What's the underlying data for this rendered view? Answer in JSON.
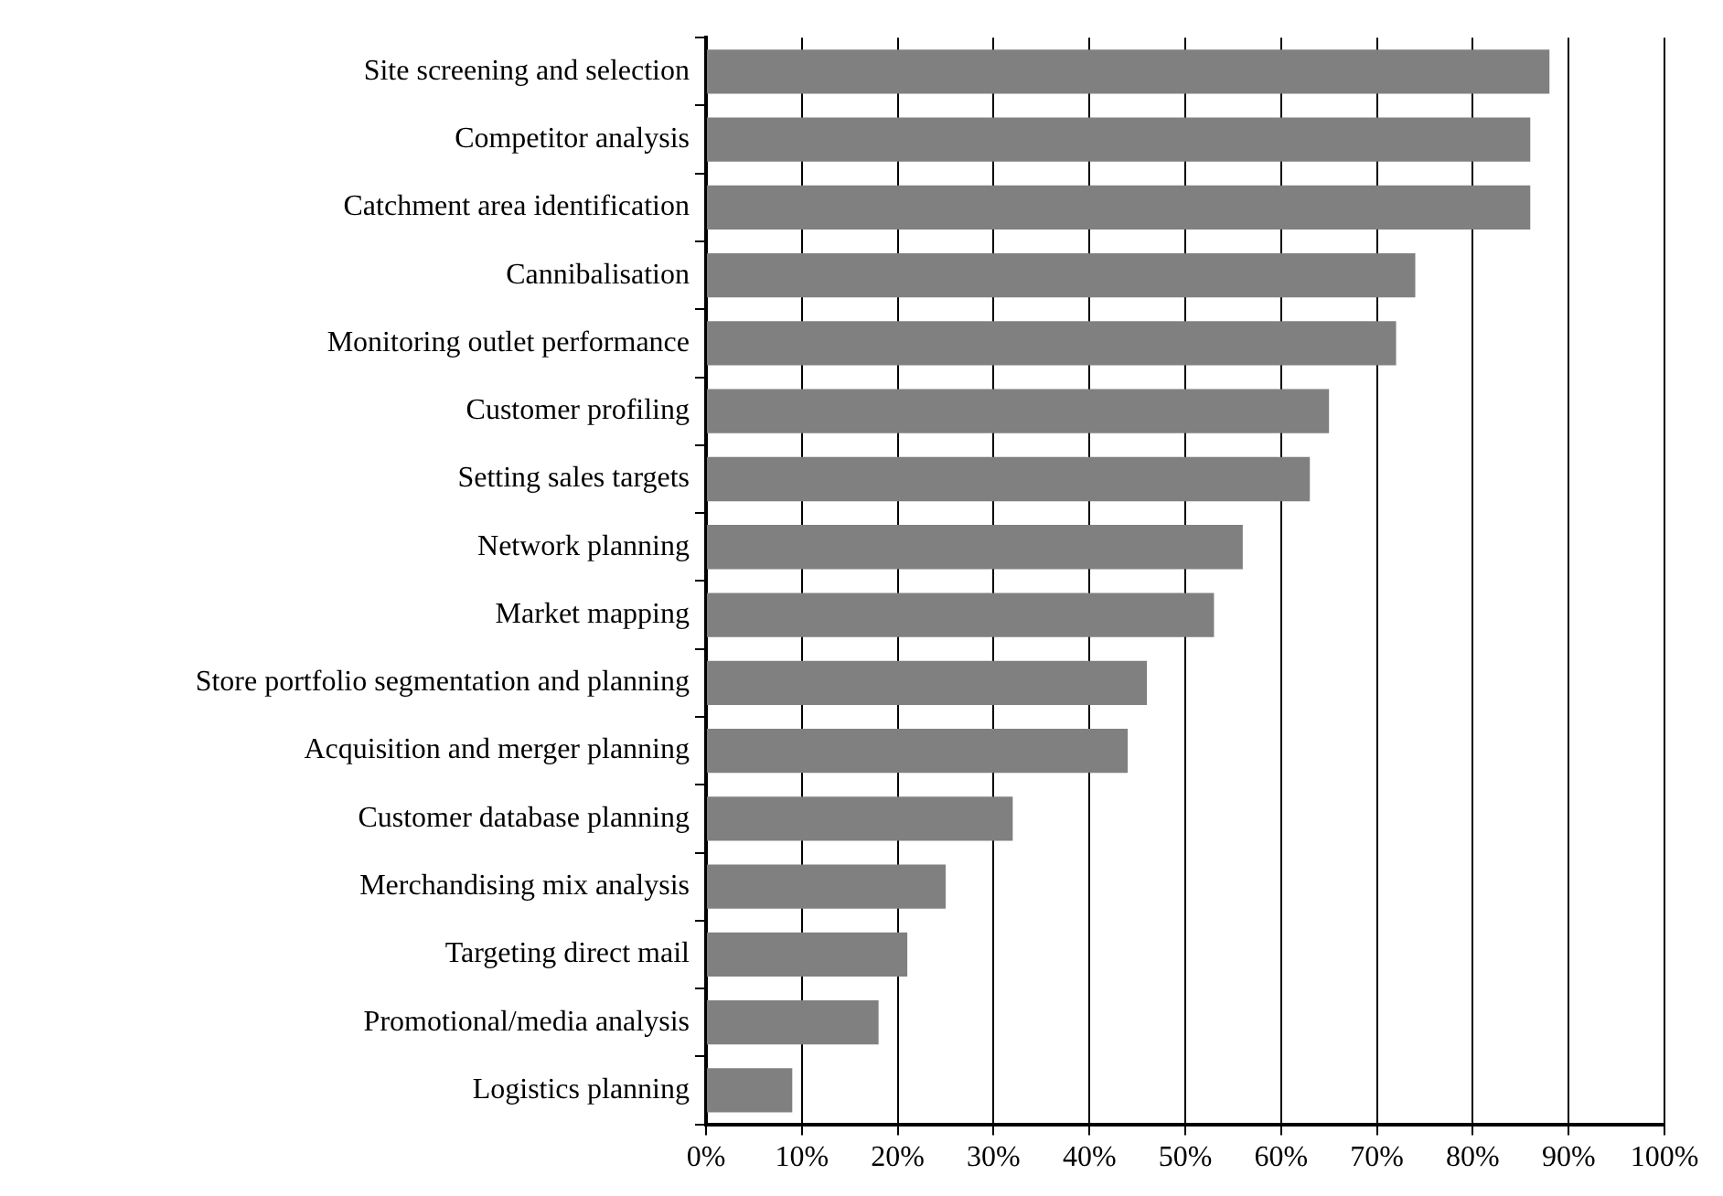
{
  "chart_data": {
    "type": "bar",
    "orientation": "horizontal",
    "categories": [
      "Site screening and selection",
      "Competitor analysis",
      "Catchment area identification",
      "Cannibalisation",
      "Monitoring outlet performance",
      "Customer profiling",
      "Setting sales targets",
      "Network planning",
      "Market mapping",
      "Store portfolio segmentation and planning",
      "Acquisition and merger planning",
      "Customer database planning",
      "Merchandising mix analysis",
      "Targeting direct mail",
      "Promotional/media analysis",
      "Logistics planning"
    ],
    "values": [
      88,
      86,
      86,
      74,
      72,
      65,
      63,
      56,
      53,
      46,
      44,
      32,
      25,
      21,
      18,
      9
    ],
    "color": "#808080",
    "xlim": [
      0,
      100
    ],
    "xticks": [
      {
        "value": 0,
        "label": "0%"
      },
      {
        "value": 10,
        "label": "10%"
      },
      {
        "value": 20,
        "label": "20%"
      },
      {
        "value": 30,
        "label": "30%"
      },
      {
        "value": 40,
        "label": "40%"
      },
      {
        "value": 50,
        "label": "50%"
      },
      {
        "value": 60,
        "label": "60%"
      },
      {
        "value": 70,
        "label": "70%"
      },
      {
        "value": 80,
        "label": "80%"
      },
      {
        "value": 90,
        "label": "90%"
      },
      {
        "value": 100,
        "label": "100%"
      }
    ],
    "grid": "x",
    "legend": false
  }
}
